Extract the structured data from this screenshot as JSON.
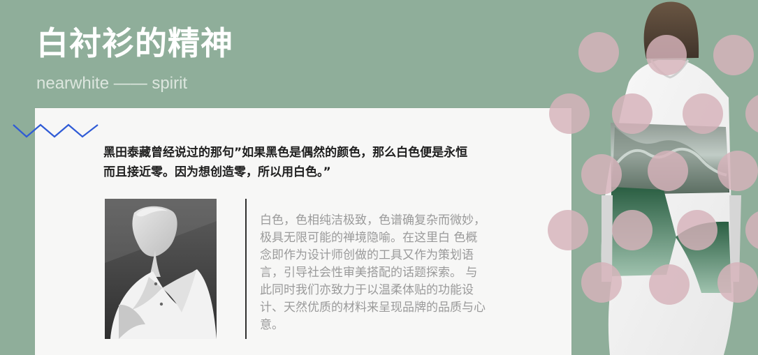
{
  "header": {
    "title": "白衬衫的精神",
    "subtitle": "nearwhite —— spirit"
  },
  "content": {
    "quote": "黑田泰藏曾经说过的那句”如果黑色是偶然的颜色，那么白色便是永恒\n而且接近零。因为想创造零，所以用白色。”",
    "description": "白色，色相纯洁极致，色谱确复杂而微妙，\n极具无限可能的禅境隐喻。在这里白 色概\n念即作为设计师创做的工具又作为策划语\n言，引导社会性审美搭配的话题探索。 与\n此同时我们亦致力于以温柔体贴的功能设\n计、天然优质的材料来呈现品牌的品质与心\n意。"
  },
  "decor": {
    "background_color": "#8fae9a",
    "card_color": "#f7f7f6",
    "zigzag_color": "#2f5bd6",
    "dot_color": "#d7b3bb",
    "icon": "zigzag-icon"
  }
}
